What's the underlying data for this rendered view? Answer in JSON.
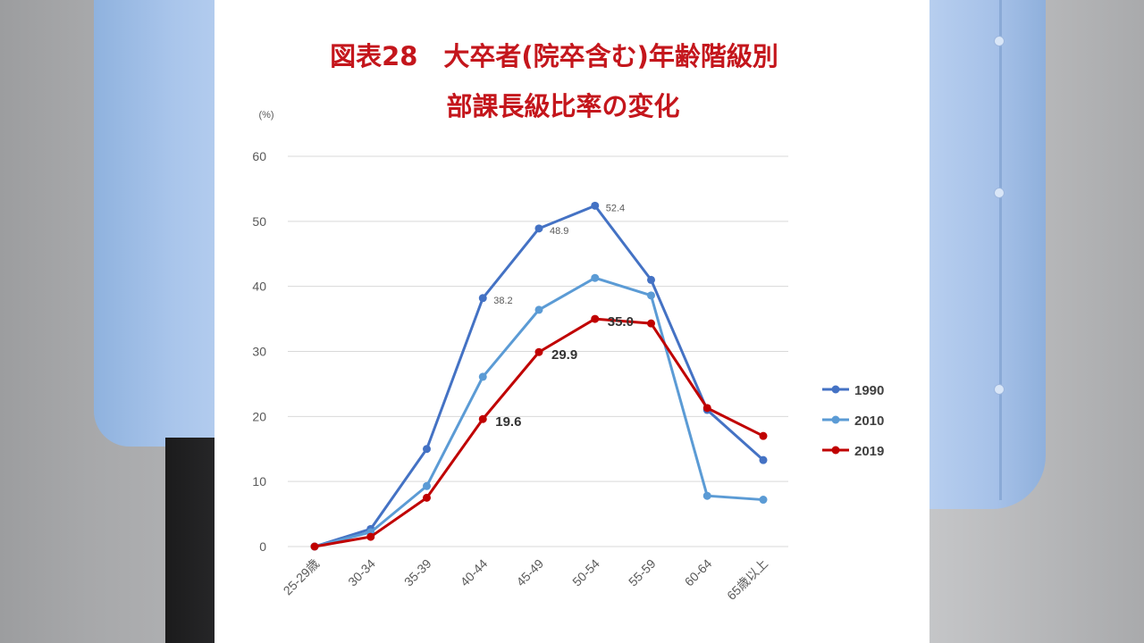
{
  "colors": {
    "s1990": "#4472c4",
    "s2010": "#5b9bd5",
    "s2019": "#c00000",
    "title": "#c4161c",
    "axis_text": "#595959",
    "grid": "#d9d9d9"
  },
  "chart_data": {
    "type": "line",
    "title_line1": "図表28　大卒者(院卒含む)年齢階級別",
    "title_line2": "部課長級比率の変化",
    "unit_label": "(%)",
    "categories": [
      "25-29歳",
      "30-34",
      "35-39",
      "40-44",
      "45-49",
      "50-54",
      "55-59",
      "60-64",
      "65歳以上"
    ],
    "ylim": [
      0,
      60
    ],
    "yticks": [
      0,
      10,
      20,
      30,
      40,
      50,
      60
    ],
    "grid": true,
    "legend_position": "right",
    "series": [
      {
        "name": "1990",
        "color_key": "s1990",
        "values": [
          0,
          2.7,
          15.0,
          38.2,
          48.9,
          52.4,
          41.0,
          21.0,
          13.3
        ],
        "labels": [
          null,
          null,
          null,
          "38.2",
          "48.9",
          "52.4",
          null,
          null,
          null
        ],
        "label_bold": false
      },
      {
        "name": "2010",
        "color_key": "s2010",
        "values": [
          0,
          2.2,
          9.3,
          26.1,
          36.4,
          41.3,
          38.6,
          7.8,
          7.2
        ],
        "labels": [
          null,
          null,
          null,
          null,
          null,
          null,
          null,
          null,
          null
        ],
        "label_bold": false
      },
      {
        "name": "2019",
        "color_key": "s2019",
        "values": [
          0,
          1.5,
          7.5,
          19.6,
          29.9,
          35.0,
          34.3,
          21.3,
          17.0
        ],
        "labels": [
          null,
          null,
          null,
          "19.6",
          "29.9",
          "35.0",
          null,
          null,
          null
        ],
        "label_bold": true
      }
    ]
  }
}
